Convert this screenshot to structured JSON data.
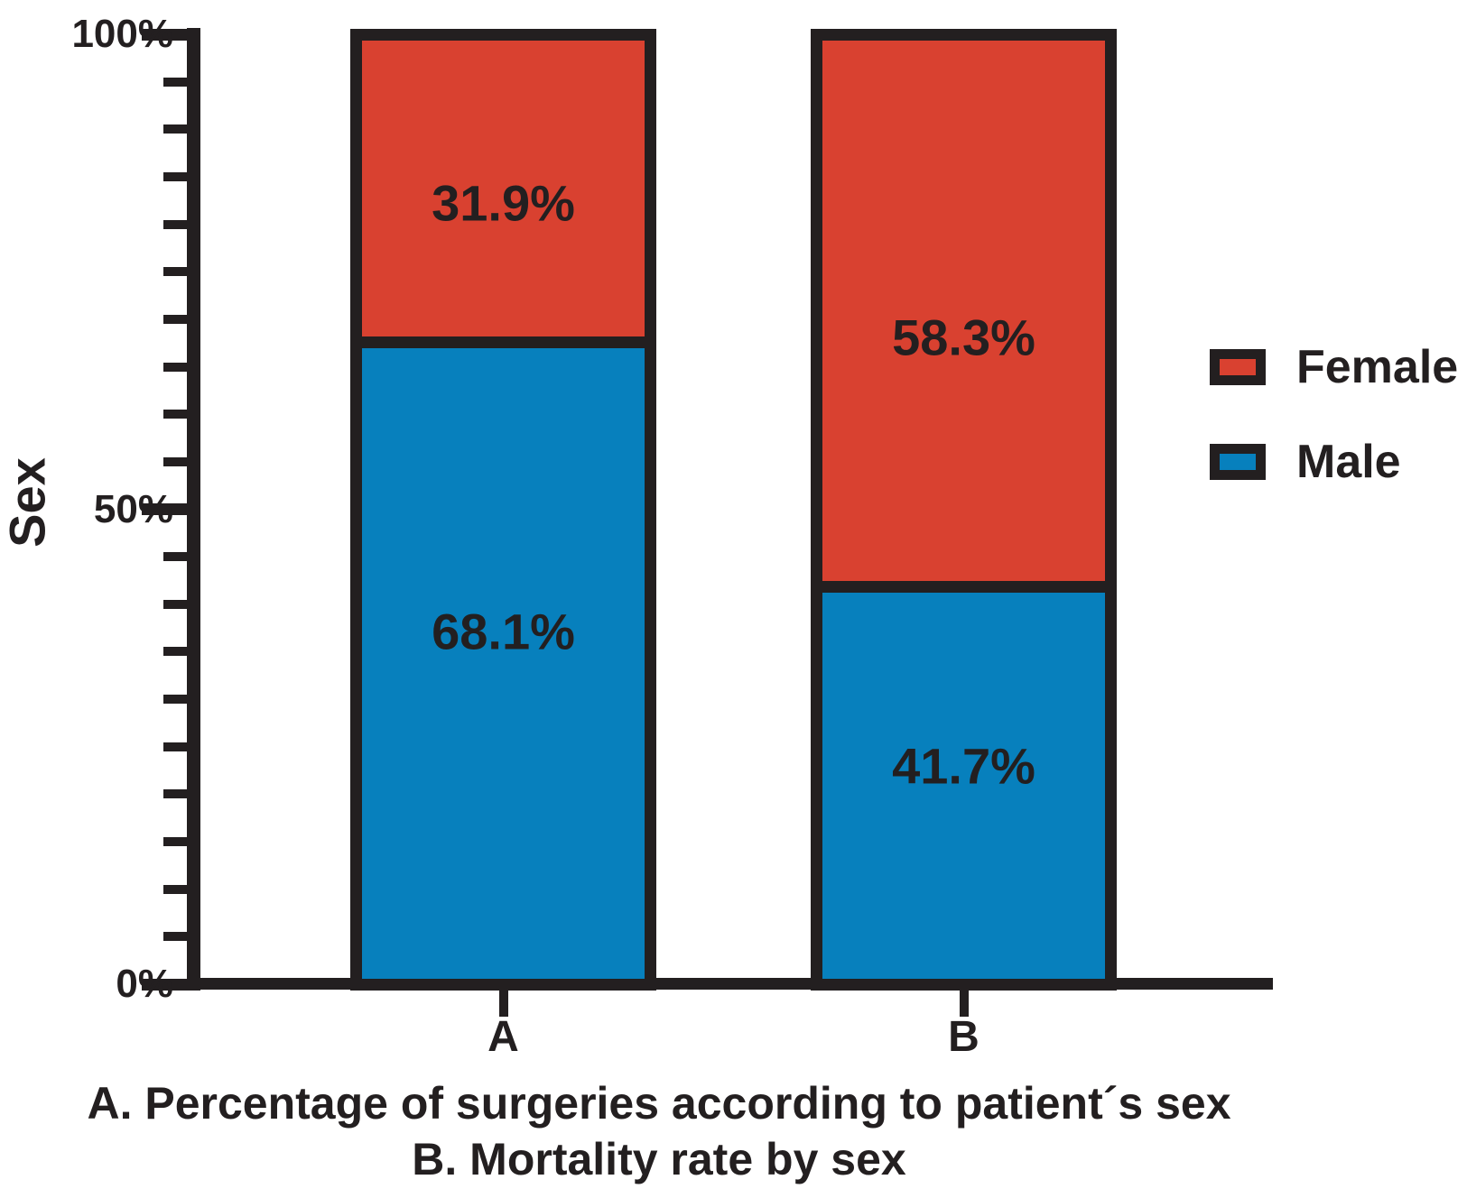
{
  "chart_data": {
    "type": "bar",
    "stacked": true,
    "orientation": "vertical",
    "categories": [
      "A",
      "B"
    ],
    "series": [
      {
        "name": "Male",
        "color": "#0780BD",
        "values": [
          68.1,
          41.7
        ],
        "labels": [
          "68.1%",
          "41.7%"
        ]
      },
      {
        "name": "Female",
        "color": "#D94130",
        "values": [
          31.9,
          58.3
        ],
        "labels": [
          "31.9%",
          "58.3%"
        ]
      }
    ],
    "ylabel": "Sex",
    "xlabel": "",
    "ylim": [
      0,
      100
    ],
    "yticks_major": [
      {
        "value": 0,
        "label": "0%"
      },
      {
        "value": 50,
        "label": "50%"
      },
      {
        "value": 100,
        "label": "100%"
      }
    ],
    "ytick_minor_step": 5,
    "grid": false,
    "legend": {
      "position": "right",
      "items": [
        {
          "label": "Female",
          "color": "#D94130"
        },
        {
          "label": "Male",
          "color": "#0780BD"
        }
      ]
    },
    "caption_lines": [
      "A. Percentage of surgeries according to patient´s sex",
      "B. Mortality rate by sex"
    ],
    "axis_color": "#231F20",
    "background_color": "#FFFFFF"
  }
}
